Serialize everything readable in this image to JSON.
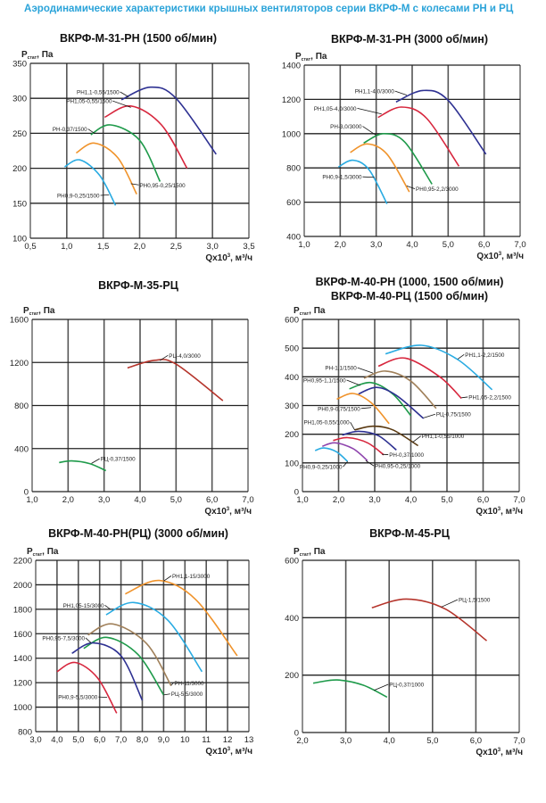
{
  "header": "Аэродинамические характеристики крышных вентиляторов серии ВКРФ-М с колесами РН и РЦ",
  "axis_text": {
    "y_main": "P",
    "y_sub": "стат",
    "y_unit": ", Па",
    "x_main": "Qx10",
    "x_sup": "3",
    "x_unit": ", м³/ч"
  },
  "colors": {
    "navy": "#2e3192",
    "red": "#d7263d",
    "green": "#1e9a4a",
    "orange": "#f0932b",
    "cyan": "#29abe2",
    "brown": "#a0805a",
    "darkbrown": "#5a3a12",
    "purple": "#8e44ad",
    "darkred": "#b5342b",
    "header": "#2aa3d9"
  },
  "chart_data": [
    {
      "type": "line",
      "title": [
        "ВКРФ-М-31-РН (1500 об/мин)"
      ],
      "xlim": [
        0.5,
        3.5
      ],
      "ylim": [
        100,
        350
      ],
      "grid": true,
      "xticks": [
        "0,5",
        "1,0",
        "1,5",
        "2,0",
        "2,5",
        "3,0",
        "3,5"
      ],
      "yticks": [
        "100",
        "150",
        "200",
        "250",
        "300",
        "350"
      ],
      "series": [
        {
          "name": "РН1,1-0,55/1500",
          "color": "#2e3192",
          "points": [
            [
              1.75,
              298
            ],
            [
              2.15,
              316
            ],
            [
              2.5,
              300
            ],
            [
              3.05,
              220
            ]
          ]
        },
        {
          "name": "РН1,05-0,55/1500",
          "color": "#d7263d",
          "points": [
            [
              1.52,
              273
            ],
            [
              1.88,
              289
            ],
            [
              2.3,
              262
            ],
            [
              2.65,
              200
            ]
          ]
        },
        {
          "name": "РН-0,37/1500",
          "color": "#1e9a4a",
          "points": [
            [
              1.33,
              248
            ],
            [
              1.6,
              262
            ],
            [
              2.0,
              240
            ],
            [
              2.28,
              181
            ]
          ]
        },
        {
          "name": "РН0,95-0,25/1500",
          "color": "#f0932b",
          "points": [
            [
              1.13,
              222
            ],
            [
              1.38,
              236
            ],
            [
              1.7,
              215
            ],
            [
              1.96,
              163
            ]
          ]
        },
        {
          "name": "РН0,9-0,25/1500",
          "color": "#29abe2",
          "points": [
            [
              0.97,
              202
            ],
            [
              1.18,
              212
            ],
            [
              1.45,
              190
            ],
            [
              1.67,
              147
            ]
          ]
        }
      ]
    },
    {
      "type": "line",
      "title": [
        "ВКРФ-М-31-РН (3000 об/мин)"
      ],
      "xlim": [
        1.0,
        7.0
      ],
      "ylim": [
        400,
        1400
      ],
      "grid": true,
      "xticks": [
        "1,0",
        "2,0",
        "3,0",
        "4,0",
        "5,0",
        "6,0",
        "7,0"
      ],
      "yticks": [
        "400",
        "600",
        "800",
        "1000",
        "1200",
        "1400"
      ],
      "series": [
        {
          "name": "РН1,1-4,0/3000",
          "color": "#2e3192",
          "points": [
            [
              3.55,
              1185
            ],
            [
              4.3,
              1252
            ],
            [
              5.0,
              1195
            ],
            [
              6.05,
              880
            ]
          ]
        },
        {
          "name": "РН1,05-4,0/3000",
          "color": "#d7263d",
          "points": [
            [
              3.05,
              1095
            ],
            [
              3.7,
              1155
            ],
            [
              4.4,
              1090
            ],
            [
              5.3,
              810
            ]
          ]
        },
        {
          "name": "РН-3,0/3000",
          "color": "#1e9a4a",
          "points": [
            [
              2.65,
              945
            ],
            [
              3.2,
              1000
            ],
            [
              3.8,
              950
            ],
            [
              4.55,
              705
            ]
          ]
        },
        {
          "name": "РН0,95-2,2/3000",
          "color": "#f0932b",
          "points": [
            [
              2.28,
              890
            ],
            [
              2.75,
              940
            ],
            [
              3.3,
              880
            ],
            [
              3.92,
              660
            ]
          ]
        },
        {
          "name": "РН0,9-1,5/3000",
          "color": "#29abe2",
          "points": [
            [
              1.95,
              805
            ],
            [
              2.35,
              845
            ],
            [
              2.8,
              790
            ],
            [
              3.3,
              590
            ]
          ]
        }
      ]
    },
    {
      "type": "line",
      "title": [
        "ВКРФ-М-35-РЦ"
      ],
      "xlim": [
        1.0,
        7.0
      ],
      "ylim": [
        0,
        1600
      ],
      "grid": true,
      "xticks": [
        "1,0",
        "2,0",
        "3,0",
        "4,0",
        "5,0",
        "6,0",
        "7,0"
      ],
      "yticks": [
        "0",
        "400",
        "800",
        "1200",
        "1600"
      ],
      "series": [
        {
          "name": "РЦ-4,0/3000",
          "color": "#b5342b",
          "points": [
            [
              3.65,
              1150
            ],
            [
              4.4,
              1220
            ],
            [
              5.0,
              1185
            ],
            [
              6.3,
              845
            ]
          ]
        },
        {
          "name": "РЦ-0,37/1500",
          "color": "#1e9a4a",
          "points": [
            [
              1.75,
              270
            ],
            [
              2.1,
              285
            ],
            [
              2.6,
              260
            ],
            [
              3.05,
              195
            ]
          ]
        }
      ]
    },
    {
      "type": "line",
      "title": [
        "ВКРФ-М-40-РН (1000, 1500 об/мин)",
        "ВКРФ-М-40-РЦ (1500 об/мин)"
      ],
      "xlim": [
        1.0,
        7.0
      ],
      "ylim": [
        0,
        600
      ],
      "grid": true,
      "xticks": [
        "1,0",
        "2,0",
        "3,0",
        "4,0",
        "5,0",
        "6,0",
        "7,0"
      ],
      "yticks": [
        "0",
        "100",
        "200",
        "300",
        "400",
        "500",
        "600"
      ],
      "series": [
        {
          "name": "РН1,1-2,2/1500",
          "color": "#29abe2",
          "points": [
            [
              3.3,
              480
            ],
            [
              4.3,
              510
            ],
            [
              5.3,
              460
            ],
            [
              6.25,
              355
            ]
          ]
        },
        {
          "name": "РН1,05-2,2/1500",
          "color": "#d7263d",
          "points": [
            [
              3.1,
              437
            ],
            [
              3.85,
              465
            ],
            [
              4.8,
              400
            ],
            [
              5.4,
              325
            ]
          ]
        },
        {
          "name": "РН-1,1/1500",
          "color": "#a0805a",
          "points": [
            [
              2.7,
              395
            ],
            [
              3.3,
              420
            ],
            [
              4.0,
              385
            ],
            [
              4.7,
              290
            ]
          ]
        },
        {
          "name": "РН0,95-1,1/1500",
          "color": "#1e9a4a",
          "points": [
            [
              2.3,
              358
            ],
            [
              2.9,
              380
            ],
            [
              3.5,
              340
            ],
            [
              4.0,
              265
            ]
          ]
        },
        {
          "name": "РЦ-0,75/1500",
          "color": "#2e3192",
          "points": [
            [
              2.55,
              340
            ],
            [
              3.05,
              363
            ],
            [
              3.6,
              335
            ],
            [
              4.35,
              255
            ]
          ]
        },
        {
          "name": "РН0,9-0,75/1500",
          "color": "#f0932b",
          "points": [
            [
              1.95,
              322
            ],
            [
              2.4,
              342
            ],
            [
              2.9,
              310
            ],
            [
              3.4,
              237
            ]
          ]
        },
        {
          "name": "РН1,1-0,55/1000",
          "color": "#5a3a12",
          "points": [
            [
              2.45,
              215
            ],
            [
              2.95,
              228
            ],
            [
              3.5,
              215
            ],
            [
              4.2,
              160
            ]
          ]
        },
        {
          "name": "РН1,05-0,55/1000",
          "color": "#2e3192",
          "points": [
            [
              2.1,
              197
            ],
            [
              2.55,
              210
            ],
            [
              3.1,
              195
            ],
            [
              3.6,
              145
            ]
          ]
        },
        {
          "name": "РН-0,37/1000",
          "color": "#d7263d",
          "points": [
            [
              1.85,
              178
            ],
            [
              2.25,
              188
            ],
            [
              2.8,
              170
            ],
            [
              3.25,
              128
            ]
          ]
        },
        {
          "name": "РН0,95-0,25/1000",
          "color": "#8e44ad",
          "points": [
            [
              1.55,
              158
            ],
            [
              1.9,
              170
            ],
            [
              2.4,
              150
            ],
            [
              2.8,
              108
            ]
          ]
        },
        {
          "name": "РН0,9-0,25/1000",
          "color": "#29abe2",
          "points": [
            [
              1.35,
              143
            ],
            [
              1.6,
              152
            ],
            [
              1.95,
              138
            ],
            [
              2.25,
              105
            ]
          ]
        }
      ]
    },
    {
      "type": "line",
      "title": [
        "ВКРФ-М-40-РН(РЦ) (3000 об/мин)"
      ],
      "xlim": [
        3.0,
        13.0
      ],
      "ylim": [
        800,
        2200
      ],
      "grid": true,
      "xticks": [
        "3,0",
        "4,0",
        "5,0",
        "6,0",
        "7,0",
        "8,0",
        "9,0",
        "10",
        "11",
        "12",
        "13"
      ],
      "yticks": [
        "800",
        "1000",
        "1200",
        "1400",
        "1600",
        "1800",
        "2000",
        "2200"
      ],
      "series": [
        {
          "name": "РН1,1-15/3000",
          "color": "#f0932b",
          "points": [
            [
              7.2,
              1925
            ],
            [
              8.8,
              2035
            ],
            [
              10.5,
              1880
            ],
            [
              12.45,
              1420
            ]
          ]
        },
        {
          "name": "РН1,05-15/3000",
          "color": "#29abe2",
          "points": [
            [
              6.3,
              1755
            ],
            [
              7.6,
              1855
            ],
            [
              9.2,
              1710
            ],
            [
              10.8,
              1290
            ]
          ]
        },
        {
          "name": "РН-11/3000",
          "color": "#a0805a",
          "points": [
            [
              5.45,
              1590
            ],
            [
              6.6,
              1680
            ],
            [
              8.2,
              1520
            ],
            [
              9.35,
              1175
            ]
          ]
        },
        {
          "name": "РЦ-5,5/3000",
          "color": "#1e9a4a",
          "points": [
            [
              5.25,
              1480
            ],
            [
              6.35,
              1570
            ],
            [
              7.8,
              1430
            ],
            [
              9.0,
              1100
            ]
          ]
        },
        {
          "name": "РН0,95-7,5/3000",
          "color": "#2e3192",
          "points": [
            [
              4.7,
              1440
            ],
            [
              5.7,
              1525
            ],
            [
              7.0,
              1420
            ],
            [
              8.0,
              1055
            ]
          ]
        },
        {
          "name": "РН0,9-5,5/3000",
          "color": "#d7263d",
          "points": [
            [
              4.0,
              1290
            ],
            [
              4.85,
              1365
            ],
            [
              5.9,
              1240
            ],
            [
              6.8,
              950
            ]
          ]
        }
      ]
    },
    {
      "type": "line",
      "title": [
        "ВКРФ-М-45-РЦ"
      ],
      "xlim": [
        2.0,
        7.0
      ],
      "ylim": [
        0,
        600
      ],
      "grid": true,
      "xticks": [
        "2,0",
        "3,0",
        "4,0",
        "5,0",
        "6,0",
        "7,0"
      ],
      "yticks": [
        "0",
        "200",
        "400",
        "600"
      ],
      "series": [
        {
          "name": "РЦ-1,5/1500",
          "color": "#b5342b",
          "points": [
            [
              3.6,
              435
            ],
            [
              4.4,
              465
            ],
            [
              5.3,
              430
            ],
            [
              6.25,
              320
            ]
          ]
        },
        {
          "name": "РЦ-0,37/1000",
          "color": "#1e9a4a",
          "points": [
            [
              2.25,
              172
            ],
            [
              2.8,
              183
            ],
            [
              3.4,
              165
            ],
            [
              3.95,
              123
            ]
          ]
        }
      ]
    }
  ]
}
